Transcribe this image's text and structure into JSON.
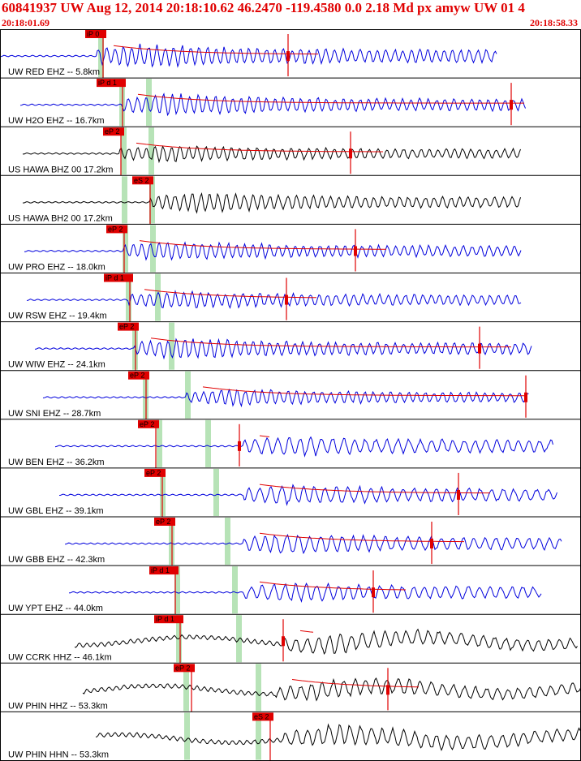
{
  "header": {
    "title": "60841937 UW Aug 12, 2014 20:18:10.62    46.2470 -119.4580  0.0 2.18 Md px amyw UW 01    4",
    "start_time": "20:18:01.69",
    "end_time": "20:18:58.33"
  },
  "colors": {
    "header_text": "#e00000",
    "pick_box": "#e00000",
    "pick_line": "#e00000",
    "coda": "#e00000",
    "band": "#b7e3b7",
    "blue_trace": "#0000dd",
    "black_trace": "#000000"
  },
  "traces": [
    {
      "label": "UW RED EHZ -- 5.8km",
      "pick": "iP 0",
      "color": "blue"
    },
    {
      "label": "UW H2O EHZ -- 16.7km",
      "pick": "iP d 1",
      "color": "blue"
    },
    {
      "label": "US HAWA BHZ 00 17.2km",
      "pick": "eP 2",
      "color": "black"
    },
    {
      "label": "US HAWA BH2 00 17.2km",
      "pick": "eS 2",
      "color": "black"
    },
    {
      "label": "UW PRO EHZ -- 18.0km",
      "pick": "eP 2",
      "color": "blue"
    },
    {
      "label": "UW RSW EHZ -- 19.4km",
      "pick": "iP d 1",
      "color": "blue"
    },
    {
      "label": "UW WIW EHZ -- 24.1km",
      "pick": "eP 2",
      "color": "blue"
    },
    {
      "label": "UW SNI EHZ -- 28.7km",
      "pick": "eP 2",
      "color": "blue"
    },
    {
      "label": "UW BEN EHZ -- 36.2km",
      "pick": "eP 2",
      "color": "blue"
    },
    {
      "label": "UW GBL EHZ -- 39.1km",
      "pick": "eP 2",
      "color": "blue"
    },
    {
      "label": "UW GBB EHZ -- 42.3km",
      "pick": "eP 2",
      "color": "blue"
    },
    {
      "label": "UW YPT EHZ -- 44.0km",
      "pick": "iP d 1",
      "color": "blue"
    },
    {
      "label": "UW CCRK HHZ -- 46.1km",
      "pick": "iP d 1",
      "color": "black"
    },
    {
      "label": "UW PHIN HHZ -- 53.3km",
      "pick": "eP 2",
      "color": "black"
    },
    {
      "label": "UW PHIN HHN -- 53.3km",
      "pick": "eS 2",
      "color": "black"
    }
  ]
}
